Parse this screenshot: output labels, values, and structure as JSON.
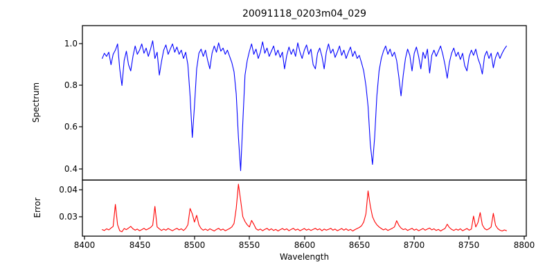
{
  "figure": {
    "title": "20091118_0203m04_029"
  },
  "chart_data": {
    "type": "line",
    "title": "20091118_0203m04_029",
    "xlabel": "Wavelength",
    "grid": false,
    "legend": null,
    "x_start": 8416,
    "x_step": 2,
    "xlim": [
      8398,
      8802
    ],
    "xtick_labels": [
      "8400",
      "8450",
      "8500",
      "8550",
      "8600",
      "8650",
      "8700",
      "8750",
      "8800"
    ],
    "panels": [
      {
        "name": "spectrum",
        "ylabel": "Spectrum",
        "line_color": "#0000ff",
        "ylim": [
          0.345,
          1.088
        ],
        "ytick_labels": [
          "1.0",
          "0.8",
          "0.6",
          "0.4"
        ],
        "ytick_values": [
          1.0,
          0.8,
          0.6,
          0.4
        ],
        "notable_features": "Ca II triplet absorption lines near 8498, 8542, 8662; weaker lines near 8434, 8468, 8688, 8730",
        "y": [
          0.93,
          0.955,
          0.94,
          0.96,
          0.9,
          0.95,
          0.97,
          1.0,
          0.88,
          0.8,
          0.92,
          0.965,
          0.9,
          0.87,
          0.94,
          0.99,
          0.95,
          0.97,
          1.0,
          0.955,
          0.98,
          0.94,
          0.975,
          1.015,
          0.93,
          0.96,
          0.85,
          0.915,
          0.97,
          0.995,
          0.95,
          0.975,
          1.0,
          0.96,
          0.985,
          0.95,
          0.97,
          0.93,
          0.96,
          0.9,
          0.75,
          0.55,
          0.7,
          0.88,
          0.955,
          0.975,
          0.94,
          0.97,
          0.92,
          0.88,
          0.955,
          0.99,
          0.96,
          1.005,
          0.965,
          0.98,
          0.95,
          0.97,
          0.94,
          0.91,
          0.865,
          0.76,
          0.55,
          0.39,
          0.62,
          0.85,
          0.92,
          0.965,
          1.0,
          0.95,
          0.975,
          0.93,
          0.96,
          1.01,
          0.955,
          0.98,
          0.94,
          0.965,
          0.99,
          0.945,
          0.97,
          0.935,
          0.96,
          0.88,
          0.945,
          0.985,
          0.95,
          0.975,
          0.94,
          1.005,
          0.96,
          0.93,
          0.97,
          0.995,
          0.95,
          0.975,
          0.9,
          0.88,
          0.955,
          0.98,
          0.94,
          0.88,
          0.96,
          1.0,
          0.955,
          0.975,
          0.935,
          0.96,
          0.99,
          0.945,
          0.97,
          0.93,
          0.96,
          0.985,
          0.94,
          0.965,
          0.93,
          0.945,
          0.91,
          0.87,
          0.8,
          0.7,
          0.52,
          0.42,
          0.55,
          0.75,
          0.87,
          0.93,
          0.965,
          0.99,
          0.95,
          0.975,
          0.94,
          0.96,
          0.92,
          0.84,
          0.75,
          0.85,
          0.93,
          0.975,
          0.945,
          0.87,
          0.955,
          0.985,
          0.94,
          0.88,
          0.96,
          0.93,
          0.975,
          0.86,
          0.945,
          0.97,
          0.94,
          0.965,
          0.99,
          0.95,
          0.9,
          0.835,
          0.91,
          0.955,
          0.98,
          0.94,
          0.96,
          0.925,
          0.955,
          0.895,
          0.87,
          0.94,
          0.97,
          0.945,
          0.975,
          0.93,
          0.9,
          0.855,
          0.94,
          0.965,
          0.93,
          0.955,
          0.885,
          0.935,
          0.96,
          0.93,
          0.955,
          0.975,
          0.99
        ]
      },
      {
        "name": "error",
        "ylabel": "Error",
        "line_color": "#ff0000",
        "ylim": [
          0.0228,
          0.0435
        ],
        "ytick_labels": [
          "0.04",
          "0.03"
        ],
        "ytick_values": [
          0.04,
          0.03
        ],
        "notable_features": "error spikes at the absorption lines: 8428, 8464, 8496, 8540 (max 0.042), 8658 (0.0395), 8684, 8754, 8760, 8772",
        "y": [
          0.0252,
          0.0249,
          0.0255,
          0.0251,
          0.0258,
          0.0264,
          0.0345,
          0.027,
          0.0248,
          0.0244,
          0.0256,
          0.0252,
          0.0258,
          0.0264,
          0.0255,
          0.025,
          0.0254,
          0.0248,
          0.0252,
          0.0257,
          0.0251,
          0.0255,
          0.026,
          0.0268,
          0.0338,
          0.0262,
          0.0255,
          0.0249,
          0.0254,
          0.025,
          0.0256,
          0.0252,
          0.0248,
          0.0253,
          0.0257,
          0.0251,
          0.0255,
          0.0249,
          0.0256,
          0.027,
          0.033,
          0.031,
          0.028,
          0.0305,
          0.027,
          0.0256,
          0.025,
          0.0254,
          0.0249,
          0.0255,
          0.0251,
          0.0247,
          0.0253,
          0.0257,
          0.025,
          0.0254,
          0.0248,
          0.0252,
          0.0256,
          0.0262,
          0.0275,
          0.033,
          0.042,
          0.036,
          0.03,
          0.0282,
          0.027,
          0.0262,
          0.0286,
          0.0272,
          0.0255,
          0.025,
          0.0254,
          0.0248,
          0.0253,
          0.0257,
          0.025,
          0.0255,
          0.0249,
          0.0253,
          0.0247,
          0.0252,
          0.0256,
          0.0251,
          0.0255,
          0.0248,
          0.0253,
          0.0257,
          0.025,
          0.0254,
          0.0248,
          0.0252,
          0.0256,
          0.025,
          0.0254,
          0.0249,
          0.0253,
          0.0257,
          0.0251,
          0.0255,
          0.0248,
          0.0254,
          0.025,
          0.0253,
          0.0257,
          0.025,
          0.0254,
          0.0248,
          0.0252,
          0.0256,
          0.025,
          0.0255,
          0.0249,
          0.0253,
          0.0247,
          0.0252,
          0.0256,
          0.026,
          0.0266,
          0.028,
          0.031,
          0.0395,
          0.034,
          0.03,
          0.0282,
          0.027,
          0.0262,
          0.0256,
          0.0251,
          0.0255,
          0.0249,
          0.0253,
          0.0257,
          0.0262,
          0.0285,
          0.0268,
          0.0258,
          0.0252,
          0.0255,
          0.0249,
          0.0253,
          0.0257,
          0.025,
          0.0254,
          0.0248,
          0.0252,
          0.0256,
          0.025,
          0.0254,
          0.0258,
          0.0251,
          0.0255,
          0.0249,
          0.0253,
          0.0247,
          0.0252,
          0.0256,
          0.0272,
          0.026,
          0.0253,
          0.0249,
          0.0254,
          0.025,
          0.0255,
          0.0248,
          0.0252,
          0.0256,
          0.025,
          0.0254,
          0.0302,
          0.0262,
          0.0278,
          0.0315,
          0.027,
          0.0256,
          0.0251,
          0.0255,
          0.0262,
          0.0312,
          0.0268,
          0.0256,
          0.025,
          0.0247,
          0.0251,
          0.0248
        ]
      }
    ]
  }
}
